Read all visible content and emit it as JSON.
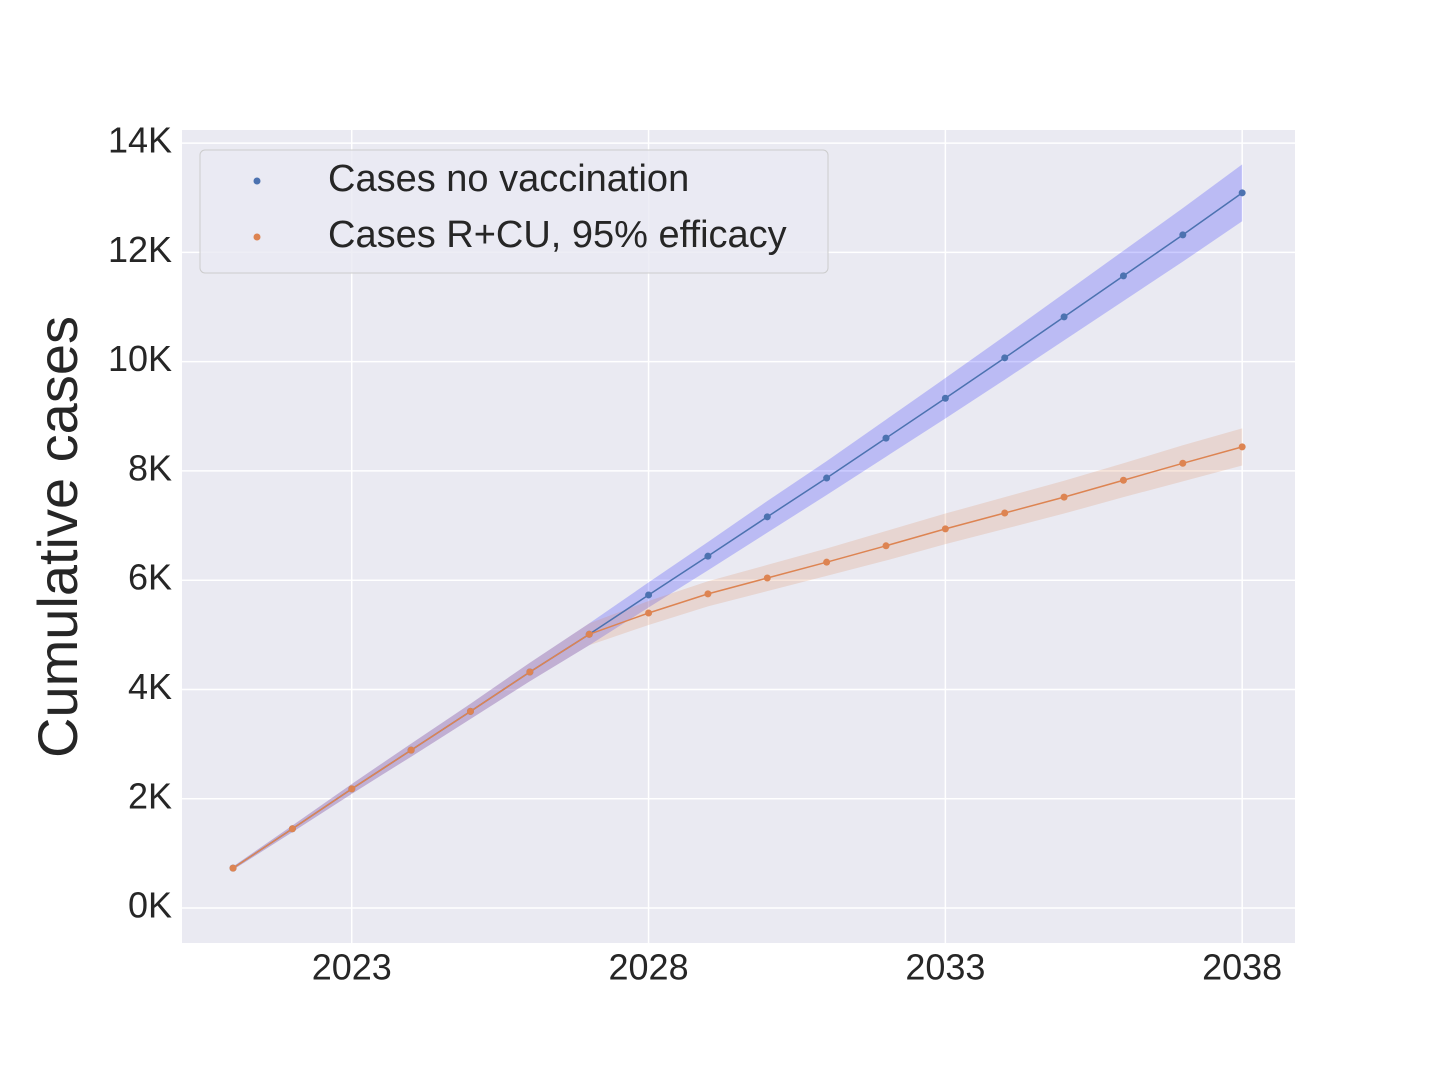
{
  "chart_data": {
    "type": "line",
    "y_label": "Cumulative cases",
    "x": [
      2021,
      2022,
      2023,
      2024,
      2025,
      2026,
      2027,
      2028,
      2029,
      2030,
      2031,
      2032,
      2033,
      2034,
      2035,
      2036,
      2037,
      2038
    ],
    "series": [
      {
        "name": "Cases no vaccination",
        "color": "#4c72b0",
        "band_color": "#0000ff",
        "values": [
          730,
          1450,
          2180,
          2890,
          3600,
          4320,
          5010,
          5730,
          6440,
          7160,
          7870,
          8600,
          9330,
          10070,
          10820,
          11570,
          12320,
          13090
        ],
        "lower": [
          700,
          1390,
          2090,
          2770,
          3460,
          4150,
          4810,
          5500,
          6180,
          6870,
          7560,
          8260,
          8960,
          9670,
          10390,
          11110,
          11830,
          12570
        ],
        "upper": [
          760,
          1510,
          2270,
          3010,
          3740,
          4490,
          5210,
          5960,
          6700,
          7450,
          8180,
          8940,
          9700,
          10470,
          11250,
          12030,
          12810,
          13610
        ]
      },
      {
        "name": "Cases R+CU, 95% efficacy",
        "color": "#dd8452",
        "band_color": "#dd8452",
        "values": [
          730,
          1450,
          2180,
          2890,
          3600,
          4320,
          5010,
          5400,
          5750,
          6040,
          6330,
          6630,
          6940,
          7230,
          7520,
          7830,
          8140,
          8440
        ],
        "lower": [
          700,
          1390,
          2090,
          2770,
          3460,
          4150,
          4810,
          5180,
          5520,
          5800,
          6080,
          6360,
          6660,
          6940,
          7220,
          7520,
          7810,
          8100
        ],
        "upper": [
          760,
          1510,
          2270,
          3010,
          3740,
          4490,
          5210,
          5620,
          5980,
          6280,
          6580,
          6900,
          7220,
          7520,
          7820,
          8140,
          8470,
          8780
        ]
      }
    ],
    "xlim": [
      2020.14,
      2038.89
    ],
    "ylim": [
      -640,
      14240
    ],
    "xticks": [
      2023,
      2028,
      2033,
      2038
    ],
    "yticks": [
      {
        "value": 0,
        "label": "0K"
      },
      {
        "value": 2000,
        "label": "2K"
      },
      {
        "value": 4000,
        "label": "4K"
      },
      {
        "value": 6000,
        "label": "6K"
      },
      {
        "value": 8000,
        "label": "8K"
      },
      {
        "value": 10000,
        "label": "10K"
      },
      {
        "value": 12000,
        "label": "12K"
      },
      {
        "value": 14000,
        "label": "14K"
      }
    ],
    "grid": true,
    "legend": "upper left",
    "background": "#eaeaf2"
  }
}
